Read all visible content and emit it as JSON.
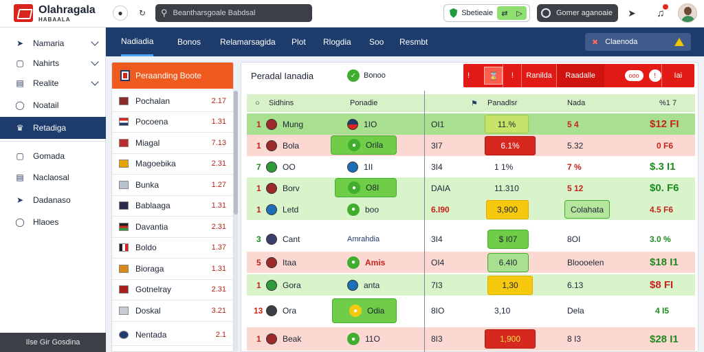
{
  "app": {
    "title": "Olahragala",
    "subtitle": "HABAALA"
  },
  "topbar": {
    "search_placeholder": "Beantharsgoale Babdsal",
    "green_pill_label": "Sbetieaie",
    "dark_pill_label": "Gomer aganoaie"
  },
  "sidebar": {
    "items": [
      {
        "label": "Namaria",
        "icon": "navigation-arrow-icon"
      },
      {
        "label": "Nahirts",
        "icon": "box-icon"
      },
      {
        "label": "Realite",
        "icon": "document-icon"
      },
      {
        "label": "Noatail",
        "icon": "clock-icon"
      },
      {
        "label": "Retadiga",
        "icon": "trophy-icon"
      },
      {
        "label": "Gomada",
        "icon": "box-icon"
      },
      {
        "label": "Naclaosal",
        "icon": "document-icon"
      },
      {
        "label": "Dadanaso",
        "icon": "location-arrow-icon"
      },
      {
        "label": "Hlaoes",
        "icon": "clock-icon"
      }
    ],
    "footer": "Ilse Gir Gosdina"
  },
  "nav": {
    "tabs": [
      "Nadiadia",
      "Bonos",
      "Relamarsagida",
      "Plot",
      "Rlogdia",
      "Soo",
      "Resmbt"
    ],
    "right_button": "Claenoda"
  },
  "left_panel": {
    "header": "Peraanding Boote",
    "rows": [
      {
        "name": "Pochalan",
        "value": "2.17"
      },
      {
        "name": "Pocoena",
        "value": "1.31"
      },
      {
        "name": "Miagal",
        "value": "7.13"
      },
      {
        "name": "Magoebika",
        "value": "2.31"
      },
      {
        "name": "Bunka",
        "value": "1.27"
      },
      {
        "name": "Bablaaga",
        "value": "1.31"
      },
      {
        "name": "Davantia",
        "value": "2.31"
      },
      {
        "name": "Boldo",
        "value": "1.37"
      },
      {
        "name": "Bioraga",
        "value": "1.31"
      },
      {
        "name": "Gotnelray",
        "value": "2.31"
      },
      {
        "name": "Doskal",
        "value": "3.21"
      },
      {
        "name": "Nentada",
        "value": "2.1"
      }
    ]
  },
  "main_panel": {
    "title": "Peradal Ianadia",
    "chip_label": "Bonoo",
    "strip": {
      "c1": "Ranilda",
      "c2": "Raadalle",
      "oval": "ooo",
      "last": "Iai"
    },
    "headers": {
      "h1": "Sidhins",
      "h2": "Ponadie",
      "h3": "Panadlsr",
      "h4": "Nada",
      "h5": "%1 7"
    },
    "rows": [
      {
        "n": "1",
        "team": "Mung",
        "mid": "1IO",
        "a": "OI1",
        "b": "11.%",
        "c": "5 4",
        "price": "$12 FI"
      },
      {
        "n": "1",
        "team": "Bola",
        "mid": "Orila",
        "a": "3I7",
        "b": "6.1%",
        "c": "5.32",
        "price": "0 F6"
      },
      {
        "n": "7",
        "team": "OO",
        "mid": "1II",
        "a": "3I4",
        "b": "1 1%",
        "c": "7 %",
        "price": "$.3 I1"
      },
      {
        "n": "1",
        "team": "Borv",
        "mid": "O8I",
        "a": "DAIA",
        "b": "11.310",
        "c": "5 12",
        "price": "$0. F6"
      },
      {
        "n": "1",
        "team": "Letd",
        "mid": "boo",
        "a": "6.I90",
        "b": "3,900",
        "c": "Colahata",
        "price": "4.5 F6"
      },
      {
        "n": "3",
        "team": "Cant",
        "mid": "Amrahdia",
        "a": "3I4",
        "b": "$ I07",
        "c": "8OI",
        "price": "3.0 %"
      },
      {
        "n": "5",
        "team": "Itaa",
        "mid": "Amis",
        "a": "OI4",
        "b": "6.4I0",
        "c": "Bloooelen",
        "price": "$18 I1"
      },
      {
        "n": "1",
        "team": "Gora",
        "mid": "anta",
        "a": "7I3",
        "b": "1,30",
        "c": "6.13",
        "price": "$8 FI"
      },
      {
        "n": "13",
        "team": "Ora",
        "mid": "Odia",
        "a": "8IO",
        "b": "3,10",
        "c": "Dela",
        "price": "4 I5"
      },
      {
        "n": "1",
        "team": "Beak",
        "mid": "11O",
        "a": "8I3",
        "b": "1,900",
        "c": "8 I3",
        "price": "$28 I1"
      }
    ]
  }
}
